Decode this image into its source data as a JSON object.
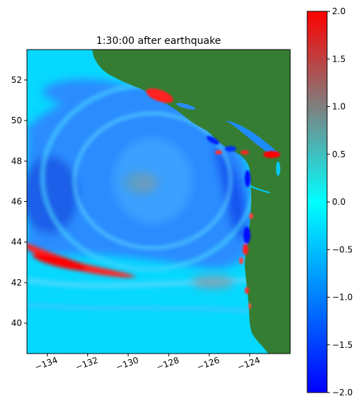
{
  "chart_data": {
    "type": "heatmap",
    "title": "1:30:00 after earthquake",
    "xlabel": "",
    "ylabel": "",
    "xlim": [
      -135.0,
      -122.0
    ],
    "ylim": [
      38.5,
      53.5
    ],
    "x_ticks": [
      -134,
      -132,
      -130,
      -128,
      -126,
      -124
    ],
    "x_tick_labels": [
      "−134",
      "−132",
      "−130",
      "−128",
      "−126",
      "−124"
    ],
    "y_ticks": [
      40,
      42,
      44,
      46,
      48,
      50,
      52
    ],
    "y_tick_labels": [
      "40",
      "42",
      "44",
      "46",
      "48",
      "50",
      "52"
    ],
    "colorbar": {
      "vmin": -2.0,
      "vmax": 2.0,
      "ticks": [
        -2.0,
        -1.5,
        -1.0,
        -0.5,
        0.0,
        0.5,
        1.0,
        1.5,
        2.0
      ],
      "tick_labels": [
        "−2.0",
        "−1.5",
        "−1.0",
        "−0.5",
        "0.0",
        "0.5",
        "1.0",
        "1.5",
        "2.0"
      ],
      "colors": [
        "#0000ff",
        "#00ffff",
        "#ff0000"
      ]
    },
    "land_color": "#357d33",
    "grid": false
  }
}
